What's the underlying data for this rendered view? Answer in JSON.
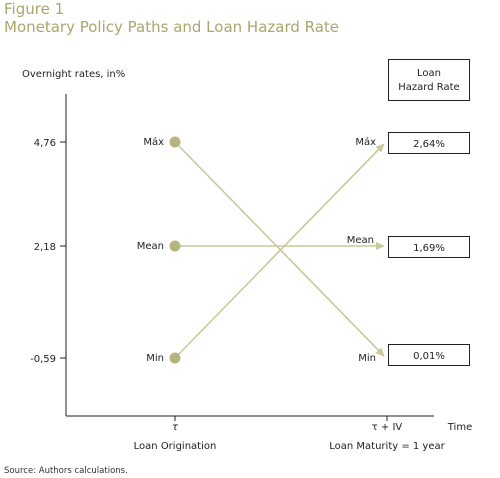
{
  "figure": {
    "title": "Figure 1",
    "subtitle": "Monetary Policy Paths and Loan Hazard Rate",
    "source": "Source: Authors calculations."
  },
  "axes": {
    "y_title": "Overnight rates, in%",
    "y_ticks": [
      "4,76",
      "2,18",
      "-0,59"
    ],
    "x_ticks": [
      "τ",
      "τ + IV"
    ],
    "x_axis_end_label": "Time",
    "x_labels": [
      "Loan Origination",
      "Loan Maturity = 1 year"
    ]
  },
  "hazard_box": {
    "header_line1": "Loan",
    "header_line2": "Hazard Rate",
    "values": [
      "2,64%",
      "1,69%",
      "0,01%"
    ]
  },
  "paths": {
    "start_labels": [
      "Máx",
      "Mean",
      "Min"
    ],
    "end_labels": [
      "Máx",
      "Mean",
      "Min"
    ]
  },
  "colors": {
    "title": "#a9a76d",
    "path_line": "#c9c99a",
    "dot": "#b7b57f",
    "axis": "#222222"
  }
}
